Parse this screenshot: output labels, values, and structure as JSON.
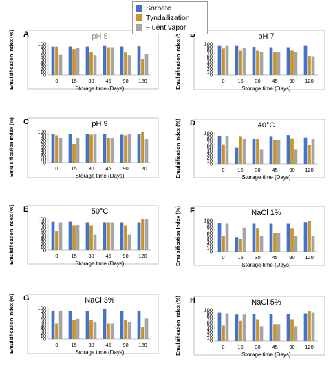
{
  "legend": [
    {
      "name": "Sorbate",
      "color": "#4472C4"
    },
    {
      "name": "Tyndallization",
      "color": "#C9922A"
    },
    {
      "name": "Fluent vapor",
      "color": "#A5A5A5"
    }
  ],
  "chart_data": [
    {
      "type": "bar",
      "panel": "A",
      "title": "pH 5",
      "title_color": "#8a8a8a",
      "categories": [
        "0",
        "15",
        "30",
        "45",
        "90",
        "120"
      ],
      "xlabel": "Storage time (Days)",
      "ylabel": "Emulsification Index (%)",
      "ylim": [
        0,
        100
      ],
      "yticks": [
        0,
        10,
        20,
        30,
        40,
        50,
        60,
        70,
        80,
        90,
        100
      ],
      "grid": false,
      "series": [
        {
          "name": "Sorbate",
          "values": [
            92,
            92,
            92,
            94,
            92,
            93
          ]
        },
        {
          "name": "Tyndallization",
          "values": [
            92,
            84,
            75,
            90,
            73,
            53
          ]
        },
        {
          "name": "Fluent vapor",
          "values": [
            65,
            89,
            64,
            90,
            64,
            67
          ]
        }
      ]
    },
    {
      "type": "bar",
      "panel": "B",
      "title": "pH 7",
      "title_color": "#000000",
      "categories": [
        "0",
        "15",
        "30",
        "45",
        "90",
        "120"
      ],
      "xlabel": "Storage time (Days)",
      "ylabel": "Emulsification Index (%)",
      "ylim": [
        0,
        100
      ],
      "yticks": [
        0,
        10,
        20,
        30,
        40,
        50,
        60,
        70,
        80,
        90,
        100
      ],
      "grid": false,
      "series": [
        {
          "name": "Sorbate",
          "values": [
            94,
            94,
            91,
            90,
            90,
            94
          ]
        },
        {
          "name": "Tyndallization",
          "values": [
            86,
            79,
            79,
            74,
            79,
            62
          ]
        },
        {
          "name": "Fluent vapor",
          "values": [
            94,
            89,
            74,
            74,
            74,
            61
          ]
        }
      ]
    },
    {
      "type": "bar",
      "panel": "C",
      "title": "pH 9",
      "title_color": "#000000",
      "categories": [
        "0",
        "15",
        "30",
        "45",
        "90",
        "120"
      ],
      "xlabel": "Storage time (Days)",
      "ylabel": "Emulsification Index (%)",
      "ylim": [
        0,
        100
      ],
      "yticks": [
        0,
        10,
        20,
        30,
        40,
        50,
        60,
        70,
        80,
        90,
        100
      ],
      "grid": false,
      "series": [
        {
          "name": "Sorbate",
          "values": [
            92,
            92,
            92,
            92,
            90,
            92
          ]
        },
        {
          "name": "Tyndallization",
          "values": [
            88,
            60,
            90,
            80,
            88,
            100
          ]
        },
        {
          "name": "Fluent vapor",
          "values": [
            80,
            80,
            92,
            80,
            92,
            76
          ]
        }
      ]
    },
    {
      "type": "bar",
      "panel": "D",
      "title": "40°C",
      "title_color": "#000000",
      "categories": [
        "0",
        "15",
        "30",
        "45",
        "90",
        "120"
      ],
      "xlabel": "Storage time (Days)",
      "ylabel": "Emulsification Index (%)",
      "ylim": [
        0,
        100
      ],
      "yticks": [
        0,
        10,
        20,
        30,
        40,
        50,
        60,
        70,
        80,
        90,
        100
      ],
      "grid": false,
      "series": [
        {
          "name": "Sorbate",
          "values": [
            90,
            52,
            82,
            88,
            93,
            85
          ]
        },
        {
          "name": "Tyndallization",
          "values": [
            63,
            88,
            82,
            78,
            83,
            60
          ]
        },
        {
          "name": "Fluent vapor",
          "values": [
            90,
            80,
            48,
            78,
            48,
            82
          ]
        }
      ]
    },
    {
      "type": "bar",
      "panel": "E",
      "title": "50°C",
      "title_color": "#000000",
      "categories": [
        "0",
        "15",
        "30",
        "45",
        "90",
        "120"
      ],
      "xlabel": "Storage time (Days)",
      "ylabel": "Emulsification Index (%)",
      "ylim": [
        0,
        100
      ],
      "yticks": [
        0,
        10,
        20,
        30,
        40,
        50,
        60,
        70,
        80,
        90,
        100
      ],
      "grid": false,
      "series": [
        {
          "name": "Sorbate",
          "values": [
            92,
            92,
            90,
            90,
            90,
            90
          ]
        },
        {
          "name": "Tyndallization",
          "values": [
            62,
            79,
            79,
            90,
            79,
            100
          ]
        },
        {
          "name": "Fluent vapor",
          "values": [
            90,
            80,
            50,
            90,
            50,
            100
          ]
        }
      ]
    },
    {
      "type": "bar",
      "panel": "F",
      "title": "NaCl 1%",
      "title_color": "#000000",
      "categories": [
        "0",
        "15",
        "30",
        "45",
        "90",
        "120"
      ],
      "xlabel": "Storage time (Days)",
      "ylabel": "Emulsification Index (%)",
      "ylim": [
        0,
        100
      ],
      "yticks": [
        0,
        10,
        20,
        30,
        40,
        50,
        60,
        70,
        80,
        90,
        100
      ],
      "grid": false,
      "series": [
        {
          "name": "Sorbate",
          "values": [
            91,
            46,
            90,
            90,
            90,
            95
          ]
        },
        {
          "name": "Tyndallization",
          "values": [
            51,
            40,
            75,
            60,
            75,
            100
          ]
        },
        {
          "name": "Fluent vapor",
          "values": [
            90,
            76,
            50,
            60,
            50,
            50
          ]
        }
      ]
    },
    {
      "type": "bar",
      "panel": "G",
      "title": "NaCl 3%",
      "title_color": "#000000",
      "categories": [
        "0",
        "15",
        "30",
        "45",
        "90",
        "120"
      ],
      "xlabel": "Storage time (Days)",
      "ylabel": "Emulsification Index (%)",
      "ylim": [
        0,
        100
      ],
      "yticks": [
        0,
        10,
        20,
        30,
        40,
        50,
        60,
        70,
        80,
        90,
        100
      ],
      "grid": false,
      "series": [
        {
          "name": "Sorbate",
          "values": [
            90,
            90,
            90,
            96,
            90,
            90
          ]
        },
        {
          "name": "Tyndallization",
          "values": [
            50,
            62,
            62,
            50,
            62,
            38
          ]
        },
        {
          "name": "Fluent vapor",
          "values": [
            89,
            65,
            55,
            50,
            55,
            66
          ]
        }
      ]
    },
    {
      "type": "bar",
      "panel": "H",
      "title": "NaCl 5%",
      "title_color": "#000000",
      "categories": [
        "0",
        "15",
        "30",
        "45",
        "90",
        "120"
      ],
      "xlabel": "Storage time (Days)",
      "ylabel": "Emulsification Index (%)",
      "ylim": [
        0,
        100
      ],
      "yticks": [
        0,
        10,
        20,
        30,
        40,
        50,
        60,
        70,
        80,
        90,
        100
      ],
      "grid": false,
      "series": [
        {
          "name": "Sorbate",
          "values": [
            92,
            86,
            88,
            88,
            88,
            90
          ]
        },
        {
          "name": "Tyndallization",
          "values": [
            50,
            65,
            70,
            55,
            70,
            97
          ]
        },
        {
          "name": "Fluent vapor",
          "values": [
            90,
            86,
            48,
            55,
            48,
            92
          ]
        }
      ]
    }
  ]
}
